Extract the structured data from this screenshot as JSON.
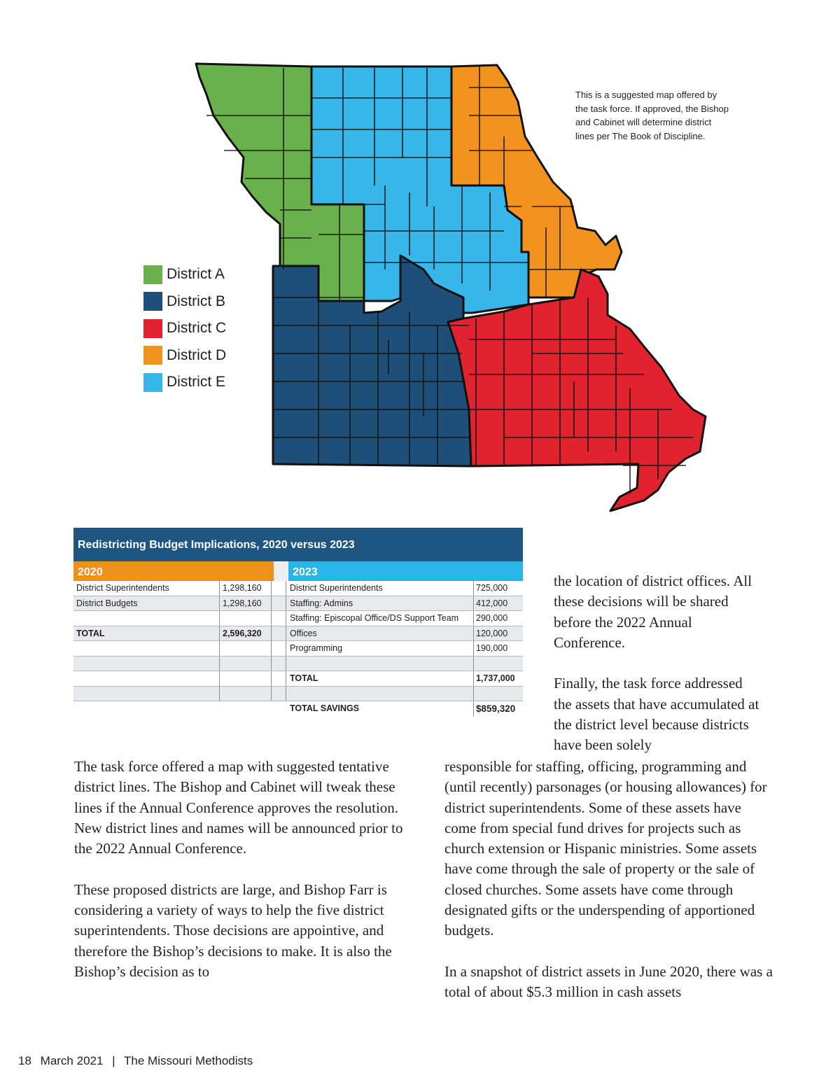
{
  "map": {
    "legend": [
      {
        "label": "District A",
        "color": "#6ab04c"
      },
      {
        "label": "District B",
        "color": "#1f4e79"
      },
      {
        "label": "District C",
        "color": "#e1232f"
      },
      {
        "label": "District D",
        "color": "#f3921e"
      },
      {
        "label": "District E",
        "color": "#38b6ea"
      }
    ],
    "note": "This is a suggested map offered by the task force. If approved, the Bishop and Cabinet will determine district lines per The Book of Discipline."
  },
  "table": {
    "title": "Redistricting Budget Implications, 2020 versus 2023",
    "head_2020": "2020",
    "head_2023": "2023",
    "rows": [
      {
        "a": "District Superintendents",
        "b": "1,298,160",
        "c": "District Superintendents",
        "d": "725,000"
      },
      {
        "a": "District Budgets",
        "b": "1,298,160",
        "c": "Staffing: Admins",
        "d": "412,000"
      },
      {
        "a": "",
        "b": "",
        "c": "Staffing: Episcopal Office/DS Support Team",
        "d": "290,000"
      },
      {
        "a": "TOTAL",
        "b": "2,596,320",
        "c": "Offices",
        "d": "120,000"
      },
      {
        "a": "",
        "b": "",
        "c": "Programming",
        "d": "190,000"
      },
      {
        "a": "",
        "b": "",
        "c": "",
        "d": ""
      },
      {
        "a": "",
        "b": "",
        "c": "TOTAL",
        "d": "1,737,000"
      },
      {
        "a": "",
        "b": "",
        "c": "",
        "d": ""
      },
      {
        "a": "",
        "b": "",
        "c": "TOTAL SAVINGS",
        "d": "$859,320"
      }
    ]
  },
  "text": {
    "right_top": [
      "the location of district offices. All these decisions will be shared before the 2022 Annual Conference.",
      "Finally, the task force addressed the assets that have accumulated at the district level because districts have been solely"
    ],
    "left": [
      "The task force offered a map with suggested tentative district lines. The Bishop and Cabinet will tweak these lines if the Annual Conference approves the resolution. New district lines and names will be announced prior to the 2022 Annual Conference.",
      "These proposed districts are large, and Bishop Farr is considering a variety of ways to help the five district superintendents. Those decisions are appointive, and therefore the Bishop’s decisions to make. It is also the Bishop’s decision as to"
    ],
    "right": [
      "responsible for staffing, officing, programming and (until recently) parsonages (or housing allowances) for district superintendents. Some of these assets have come from special fund drives for projects such as church extension or Hispanic ministries. Some assets have come through the sale of property or the sale of closed churches. Some assets have come through designated gifts or the underspending of apportioned budgets.",
      "In a snapshot of district assets in June 2020, there was a total of about $5.3 million in cash assets"
    ]
  },
  "footer": {
    "page_number": "18",
    "issue": "March 2021",
    "separator": "|",
    "publication": "The Missouri Methodists"
  }
}
